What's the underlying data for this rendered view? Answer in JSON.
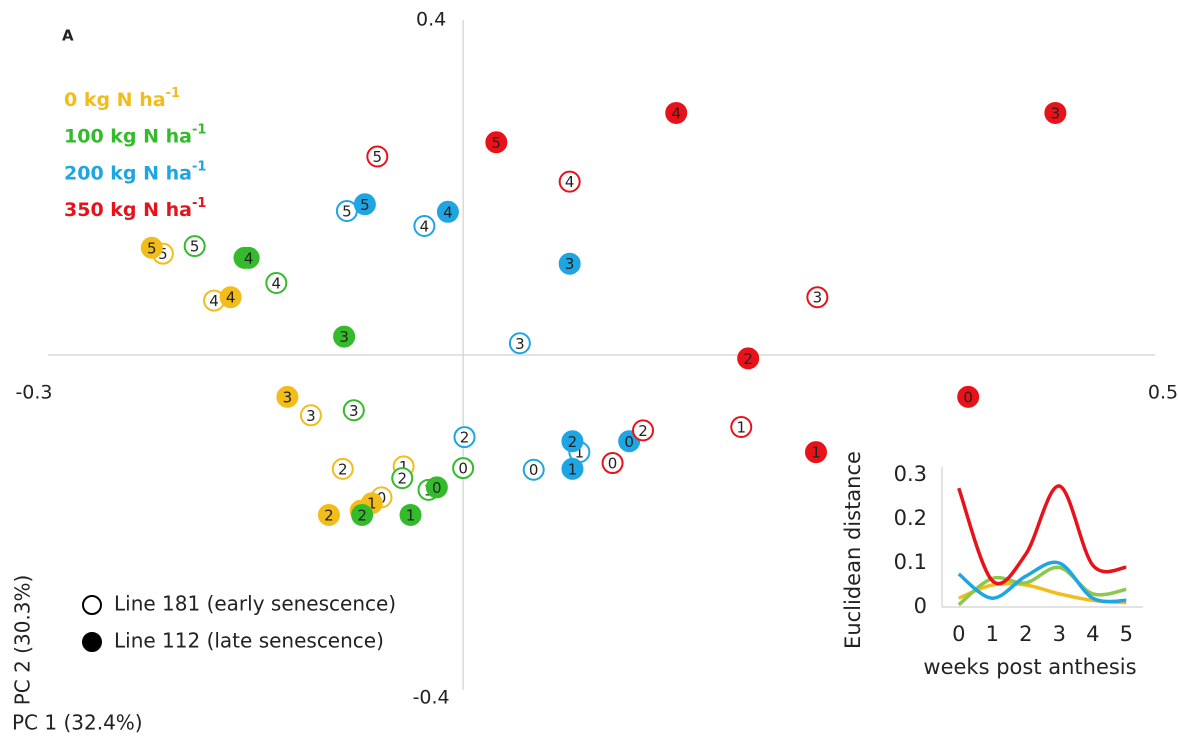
{
  "chart_data": [
    {
      "type": "scatter",
      "panel_label": "A",
      "xlabel": "PC 1 (32.4%)",
      "ylabel": "PC 2 (30.3%)",
      "xlim": [
        -0.3,
        0.5
      ],
      "ylim": [
        -0.4,
        0.4
      ],
      "xticks": [
        -0.3,
        0.5
      ],
      "yticks": [
        -0.4,
        0.4
      ],
      "nitrogen_legend": [
        {
          "text": "0 kg N ha",
          "sup": "-1",
          "color": "#f2bd1a"
        },
        {
          "text": "100 kg N ha",
          "sup": "-1",
          "color": "#33bb2c"
        },
        {
          "text": "200 kg N ha",
          "sup": "-1",
          "color": "#1ea5e3"
        },
        {
          "text": "350 kg N ha",
          "sup": "-1",
          "color": "#e8121a"
        }
      ],
      "line_legend": [
        {
          "text": "Line 181 (early senescence)",
          "filled": false
        },
        {
          "text": "Line 112 (late senescence)",
          "filled": true
        }
      ],
      "series": [
        {
          "color": "#f2bd1a",
          "filled": false,
          "labels": [
            5,
            4,
            3,
            2,
            1,
            0
          ],
          "x": [
            -0.217,
            -0.18,
            -0.11,
            -0.087,
            -0.043,
            -0.059
          ],
          "y": [
            0.121,
            0.065,
            -0.072,
            -0.136,
            -0.133,
            -0.17
          ]
        },
        {
          "color": "#f2bd1a",
          "filled": true,
          "labels": [
            5,
            4,
            3,
            2,
            1,
            0
          ],
          "x": [
            -0.225,
            -0.168,
            -0.127,
            -0.097,
            -0.066,
            -0.074
          ],
          "y": [
            0.128,
            0.069,
            -0.05,
            -0.191,
            -0.177,
            -0.186
          ]
        },
        {
          "color": "#33bb2c",
          "filled": false,
          "labels": [
            5,
            4,
            3,
            2,
            1,
            0
          ],
          "x": [
            -0.194,
            -0.135,
            -0.079,
            -0.044,
            -0.025,
            0.0
          ],
          "y": [
            0.13,
            0.086,
            -0.066,
            -0.147,
            -0.161,
            -0.135
          ]
        },
        {
          "color": "#33bb2c",
          "filled": true,
          "labels": [
            5,
            4,
            3,
            2,
            1,
            0
          ],
          "x": [
            -0.158,
            -0.155,
            -0.086,
            -0.073,
            -0.038,
            -0.019
          ],
          "y": [
            0.116,
            0.116,
            0.022,
            -0.191,
            -0.191,
            -0.158
          ]
        },
        {
          "color": "#1ea5e3",
          "filled": false,
          "labels": [
            5,
            4,
            3,
            2,
            1,
            0
          ],
          "x": [
            -0.084,
            -0.028,
            0.041,
            0.001,
            0.084,
            0.051
          ],
          "y": [
            0.172,
            0.154,
            0.014,
            -0.098,
            -0.116,
            -0.137
          ]
        },
        {
          "color": "#1ea5e3",
          "filled": true,
          "labels": [
            5,
            4,
            3,
            2,
            1,
            0
          ],
          "x": [
            -0.071,
            -0.011,
            0.077,
            0.079,
            0.079,
            0.12
          ],
          "y": [
            0.18,
            0.171,
            0.109,
            -0.103,
            -0.136,
            -0.103
          ]
        },
        {
          "color": "#e8121a",
          "filled": false,
          "labels": [
            5,
            4,
            3,
            2,
            1,
            0
          ],
          "x": [
            -0.062,
            0.077,
            0.256,
            0.13,
            0.201,
            0.108
          ],
          "y": [
            0.237,
            0.207,
            0.069,
            -0.09,
            -0.086,
            -0.129
          ]
        },
        {
          "color": "#e8121a",
          "filled": true,
          "labels": [
            5,
            4,
            3,
            2,
            1,
            0
          ],
          "x": [
            0.024,
            0.154,
            0.428,
            0.206,
            0.255,
            0.365
          ],
          "y": [
            0.254,
            0.289,
            0.289,
            -0.004,
            -0.116,
            -0.05
          ]
        }
      ]
    },
    {
      "type": "line",
      "xlabel": "weeks post anthesis",
      "ylabel": "Euclidean distance",
      "x": [
        0,
        1,
        2,
        3,
        4,
        5
      ],
      "xlim": [
        -0.5,
        5.5
      ],
      "ylim": [
        0,
        0.3
      ],
      "xticks": [
        0,
        1,
        2,
        3,
        4,
        5
      ],
      "yticks": [
        0,
        0.1,
        0.2,
        0.3
      ],
      "series": [
        {
          "color": "#f2bd1a",
          "values": [
            0.02,
            0.05,
            0.05,
            0.03,
            0.015,
            0.01
          ]
        },
        {
          "color": "#8cc84b",
          "values": [
            0.005,
            0.065,
            0.055,
            0.09,
            0.03,
            0.04
          ]
        },
        {
          "color": "#1ea5e3",
          "values": [
            0.075,
            0.02,
            0.07,
            0.1,
            0.02,
            0.015
          ]
        },
        {
          "color": "#e8121a",
          "values": [
            0.27,
            0.06,
            0.12,
            0.275,
            0.095,
            0.09
          ]
        }
      ]
    }
  ]
}
